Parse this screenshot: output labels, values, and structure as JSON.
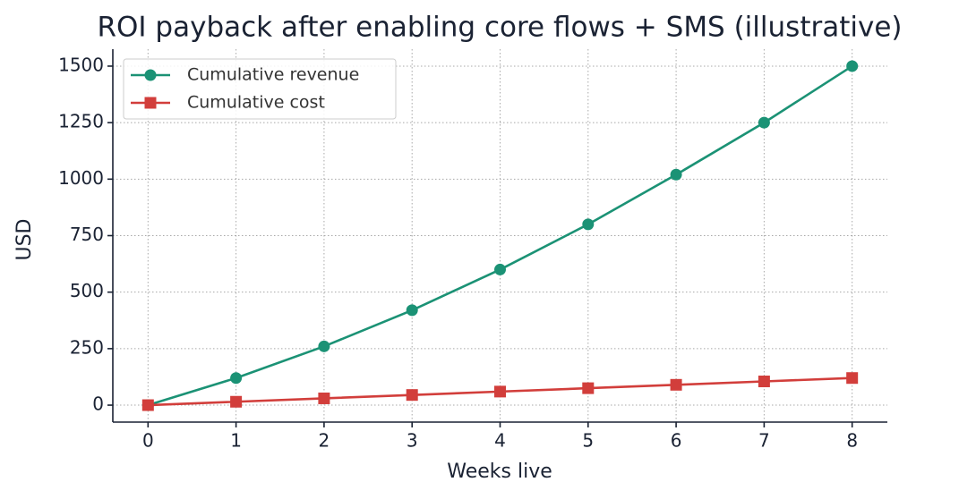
{
  "chart_data": {
    "type": "line",
    "title": "ROI payback after enabling core flows + SMS (illustrative)",
    "xlabel": "Weeks live",
    "ylabel": "USD",
    "x": [
      0,
      1,
      2,
      3,
      4,
      5,
      6,
      7,
      8
    ],
    "series": [
      {
        "name": "Cumulative revenue",
        "color": "#1b9275",
        "marker": "circle",
        "values": [
          0,
          120,
          260,
          420,
          600,
          800,
          1020,
          1250,
          1500
        ]
      },
      {
        "name": "Cumulative cost",
        "color": "#d23e3b",
        "marker": "square",
        "values": [
          0,
          15,
          30,
          45,
          60,
          75,
          90,
          105,
          120
        ]
      }
    ],
    "xlim": [
      -0.4,
      8.4
    ],
    "xticks": [
      0,
      1,
      2,
      3,
      4,
      5,
      6,
      7,
      8
    ],
    "ylim": [
      -75,
      1575
    ],
    "yticks": [
      0,
      250,
      500,
      750,
      1000,
      1250,
      1500
    ],
    "grid": true,
    "legend": "upper left"
  }
}
